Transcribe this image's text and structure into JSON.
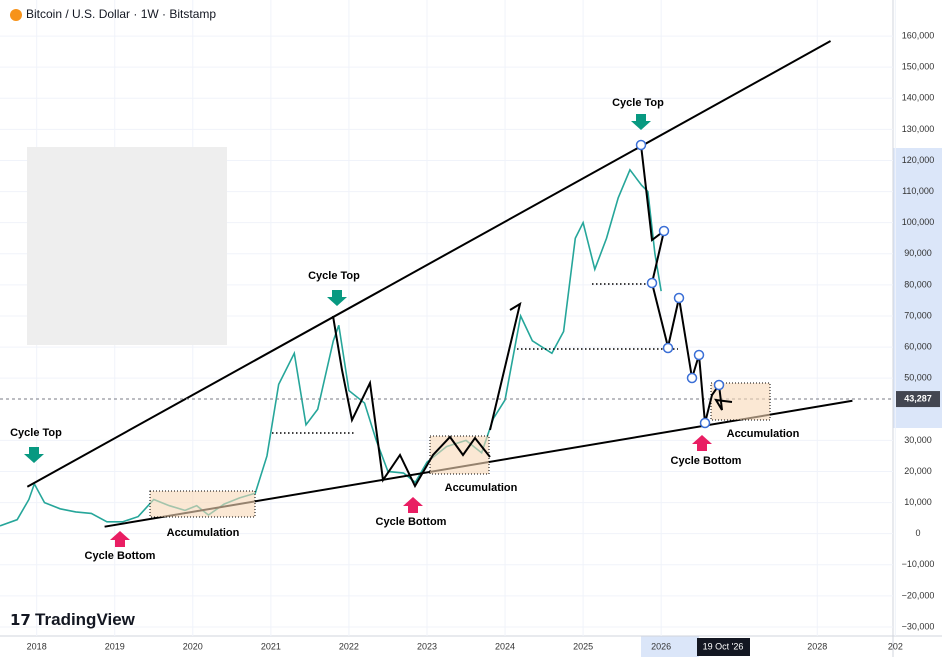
{
  "chart_data": {
    "type": "line",
    "title": "Bitcoin / U.S. Dollar · 1W · Bitstamp",
    "brand": "TradingView",
    "x": [
      2017.53,
      2017.75,
      2017.9,
      2017.97,
      2018.1,
      2018.3,
      2018.5,
      2018.7,
      2018.9,
      2019.1,
      2019.3,
      2019.5,
      2019.7,
      2019.9,
      2020.05,
      2020.2,
      2020.4,
      2020.6,
      2020.8,
      2020.95,
      2021.1,
      2021.3,
      2021.45,
      2021.6,
      2021.8,
      2021.87,
      2022.0,
      2022.2,
      2022.35,
      2022.5,
      2022.7,
      2022.85,
      2023.0,
      2023.25,
      2023.5,
      2023.7,
      2023.85,
      2024.0,
      2024.2,
      2024.35,
      2024.6,
      2024.75,
      2024.9,
      2025.0,
      2025.15,
      2025.3,
      2025.45,
      2025.6,
      2025.75,
      2025.83,
      2025.92,
      2026.0
    ],
    "values": [
      2500,
      4500,
      11000,
      16000,
      10000,
      8000,
      7000,
      6500,
      3800,
      3800,
      5500,
      11000,
      9000,
      7500,
      9000,
      6000,
      9500,
      11500,
      13000,
      25000,
      48000,
      58000,
      35000,
      40000,
      62000,
      67000,
      46000,
      42000,
      30000,
      20000,
      19500,
      16500,
      23000,
      28000,
      30000,
      26000,
      37000,
      43000,
      70000,
      62000,
      58000,
      65000,
      95000,
      100000,
      85000,
      95000,
      108000,
      117000,
      112000,
      110000,
      90000,
      78000
    ],
    "color": "#26a69a",
    "xlim": [
      2017.53,
      2028.97
    ],
    "ylim": [
      -32900,
      171600
    ],
    "xticks": [
      2018,
      2019,
      2020,
      2021,
      2022,
      2023,
      2024,
      2025,
      2026,
      2028,
      {
        "value": 2029,
        "label": "202"
      }
    ],
    "yticks": [
      {
        "value": 160000,
        "label": "160,000"
      },
      {
        "value": 150000,
        "label": "150,000"
      },
      {
        "value": 140000,
        "label": "140,000"
      },
      {
        "value": 130000,
        "label": "130,000"
      },
      {
        "value": 120000,
        "label": "120,000"
      },
      {
        "value": 110000,
        "label": "110,000"
      },
      {
        "value": 100000,
        "label": "100,000"
      },
      {
        "value": 90000,
        "label": "90,000"
      },
      {
        "value": 80000,
        "label": "80,000"
      },
      {
        "value": 70000,
        "label": "70,000"
      },
      {
        "value": 60000,
        "label": "60,000"
      },
      {
        "value": 50000,
        "label": "50,000"
      },
      {
        "value": 30000,
        "label": "30,000"
      },
      {
        "value": 20000,
        "label": "20,000"
      },
      {
        "value": 10000,
        "label": "10,000"
      },
      0,
      {
        "value": -10000,
        "label": "−10,000"
      },
      {
        "value": -20000,
        "label": "−20,000"
      },
      {
        "value": -30000,
        "label": "−30,000"
      }
    ],
    "current_price": {
      "value": 43287,
      "label": "43,287"
    },
    "cursor_date": "19 Oct '26",
    "trendlines": [
      {
        "x": [
          2017.88,
          2028.17
        ],
        "values": [
          15100,
          158400
        ]
      },
      {
        "x": [
          2018.87,
          2028.45
        ],
        "values": [
          2250,
          42730
        ]
      }
    ],
    "annotations": [
      "Cycle Top",
      "Cycle Top",
      "Cycle Top",
      "Cycle Bottom",
      "Cycle Bottom",
      "Cycle Bottom",
      "Accumulation",
      "Accumulation",
      "Accumulation"
    ]
  }
}
